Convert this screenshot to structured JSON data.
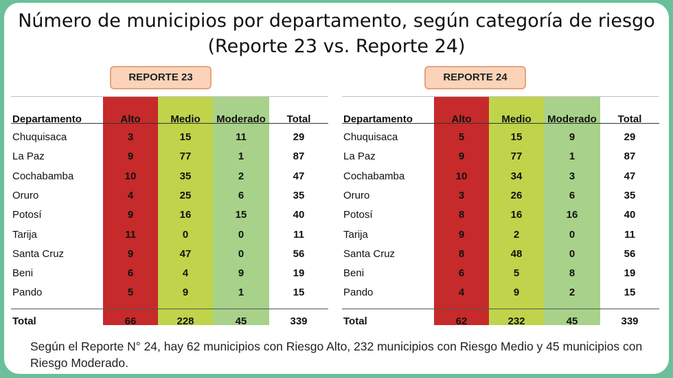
{
  "title": {
    "line1": "Número de municipios por departamento, según categoría de riesgo",
    "line2": "(Reporte 23 vs. Reporte 24)"
  },
  "colors": {
    "background": "#6bbf9a",
    "alto": "#c62a2a",
    "medio": "#bfd44a",
    "moderado": "#a8d28a",
    "badge": "#fbd3b8"
  },
  "headers": {
    "departamento": "Departamento",
    "alto": "Alto",
    "medio": "Medio",
    "moderado": "Moderado",
    "total": "Total"
  },
  "reports": [
    {
      "label": "REPORTE 23",
      "rows": [
        {
          "dep": "Chuquisaca",
          "alto": "3",
          "medio": "15",
          "moderado": "11",
          "total": "29"
        },
        {
          "dep": "La Paz",
          "alto": "9",
          "medio": "77",
          "moderado": "1",
          "total": "87"
        },
        {
          "dep": "Cochabamba",
          "alto": "10",
          "medio": "35",
          "moderado": "2",
          "total": "47"
        },
        {
          "dep": "Oruro",
          "alto": "4",
          "medio": "25",
          "moderado": "6",
          "total": "35"
        },
        {
          "dep": "Potosí",
          "alto": "9",
          "medio": "16",
          "moderado": "15",
          "total": "40"
        },
        {
          "dep": "Tarija",
          "alto": "11",
          "medio": "0",
          "moderado": "0",
          "total": "11"
        },
        {
          "dep": "Santa Cruz",
          "alto": "9",
          "medio": "47",
          "moderado": "0",
          "total": "56"
        },
        {
          "dep": "Beni",
          "alto": "6",
          "medio": "4",
          "moderado": "9",
          "total": "19"
        },
        {
          "dep": "Pando",
          "alto": "5",
          "medio": "9",
          "moderado": "1",
          "total": "15"
        }
      ],
      "totals": {
        "dep": "Total",
        "alto": "66",
        "medio": "228",
        "moderado": "45",
        "total": "339"
      }
    },
    {
      "label": "REPORTE 24",
      "rows": [
        {
          "dep": "Chuquisaca",
          "alto": "5",
          "medio": "15",
          "moderado": "9",
          "total": "29"
        },
        {
          "dep": "La Paz",
          "alto": "9",
          "medio": "77",
          "moderado": "1",
          "total": "87"
        },
        {
          "dep": "Cochabamba",
          "alto": "10",
          "medio": "34",
          "moderado": "3",
          "total": "47"
        },
        {
          "dep": "Oruro",
          "alto": "3",
          "medio": "26",
          "moderado": "6",
          "total": "35"
        },
        {
          "dep": "Potosí",
          "alto": "8",
          "medio": "16",
          "moderado": "16",
          "total": "40"
        },
        {
          "dep": "Tarija",
          "alto": "9",
          "medio": "2",
          "moderado": "0",
          "total": "11"
        },
        {
          "dep": "Santa Cruz",
          "alto": "8",
          "medio": "48",
          "moderado": "0",
          "total": "56"
        },
        {
          "dep": "Beni",
          "alto": "6",
          "medio": "5",
          "moderado": "8",
          "total": "19"
        },
        {
          "dep": "Pando",
          "alto": "4",
          "medio": "9",
          "moderado": "2",
          "total": "15"
        }
      ],
      "totals": {
        "dep": "Total",
        "alto": "62",
        "medio": "232",
        "moderado": "45",
        "total": "339"
      }
    }
  ],
  "footer": "Según el Reporte N° 24, hay 62 municipios con Riesgo Alto, 232 municipios con Riesgo Medio y 45 municipios con Riesgo Moderado."
}
